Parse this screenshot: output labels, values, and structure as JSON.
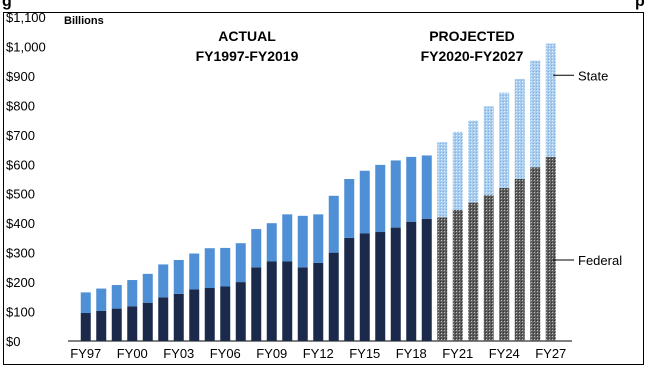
{
  "title_fragment": "g",
  "title_fragment_right": "p",
  "chart_data": {
    "type": "bar",
    "stacked": true,
    "unit_label": "Billions",
    "categories": [
      "FY97",
      "FY98",
      "FY99",
      "FY00",
      "FY01",
      "FY02",
      "FY03",
      "FY04",
      "FY05",
      "FY06",
      "FY07",
      "FY08",
      "FY09",
      "FY10",
      "FY11",
      "FY12",
      "FY13",
      "FY14",
      "FY15",
      "FY16",
      "FY17",
      "FY18",
      "FY19",
      "FY20",
      "FY21",
      "FY22",
      "FY23",
      "FY24",
      "FY25",
      "FY26",
      "FY27"
    ],
    "x_tick_labels": [
      "FY97",
      "FY00",
      "FY03",
      "FY06",
      "FY09",
      "FY12",
      "FY15",
      "FY18",
      "FY21",
      "FY24",
      "FY27"
    ],
    "ylim": [
      0,
      1100
    ],
    "y_tick_labels": [
      "$0",
      "$100",
      "$200",
      "$300",
      "$400",
      "$500",
      "$600",
      "$700",
      "$800",
      "$900",
      "$1,000",
      "$1,100"
    ],
    "series": [
      {
        "name": "Federal",
        "color": "#1b2a4a",
        "projected_color": "#7a7a7a",
        "values": [
          95,
          102,
          110,
          118,
          130,
          148,
          160,
          175,
          180,
          185,
          200,
          250,
          270,
          270,
          250,
          265,
          300,
          350,
          365,
          370,
          385,
          405,
          415,
          420,
          445,
          470,
          495,
          520,
          550,
          590,
          625
        ]
      },
      {
        "name": "State",
        "color": "#4f8fd6",
        "projected_color": "#9ec3ea",
        "values": [
          70,
          76,
          80,
          89,
          98,
          112,
          115,
          122,
          135,
          131,
          132,
          130,
          130,
          160,
          175,
          165,
          193,
          200,
          213,
          228,
          228,
          220,
          215,
          255,
          265,
          278,
          302,
          323,
          340,
          362,
          385
        ]
      }
    ],
    "projected_from_index": 23,
    "annotations": {
      "actual_line1": "ACTUAL",
      "actual_line2": "FY1997-FY2019",
      "projected_line1": "PROJECTED",
      "projected_line2": "FY2020-FY2027"
    },
    "grid": false,
    "legend": "right-side labels"
  }
}
